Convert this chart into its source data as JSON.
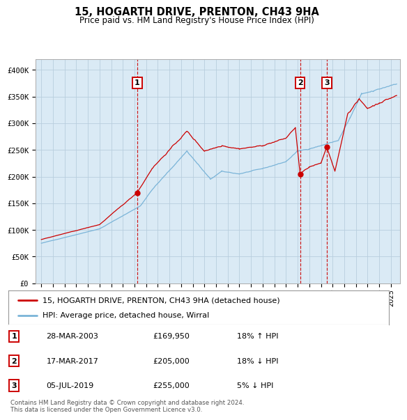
{
  "title": "15, HOGARTH DRIVE, PRENTON, CH43 9HA",
  "subtitle": "Price paid vs. HM Land Registry's House Price Index (HPI)",
  "legend_line1": "15, HOGARTH DRIVE, PRENTON, CH43 9HA (detached house)",
  "legend_line2": "HPI: Average price, detached house, Wirral",
  "sales": [
    {
      "label": "1",
      "date_num": 2003.23,
      "price": 169950,
      "date_str": "28-MAR-2003",
      "price_str": "£169,950",
      "pct": "18%",
      "dir": "↑"
    },
    {
      "label": "2",
      "date_num": 2017.21,
      "price": 205000,
      "date_str": "17-MAR-2017",
      "price_str": "£205,000",
      "pct": "18%",
      "dir": "↓"
    },
    {
      "label": "3",
      "date_num": 2019.51,
      "price": 255000,
      "date_str": "05-JUL-2019",
      "price_str": "£255,000",
      "pct": "5%",
      "dir": "↓"
    }
  ],
  "hpi_color": "#7ab4d8",
  "price_color": "#cc0000",
  "dot_color": "#cc0000",
  "vline_color": "#cc0000",
  "bg_color": "#daeaf5",
  "grid_color": "#b8cede",
  "yticks": [
    0,
    50000,
    100000,
    150000,
    200000,
    250000,
    300000,
    350000,
    400000
  ],
  "ymax": 420000,
  "xmin": 1994.5,
  "xmax": 2025.8,
  "footer": "Contains HM Land Registry data © Crown copyright and database right 2024.\nThis data is licensed under the Open Government Licence v3.0."
}
